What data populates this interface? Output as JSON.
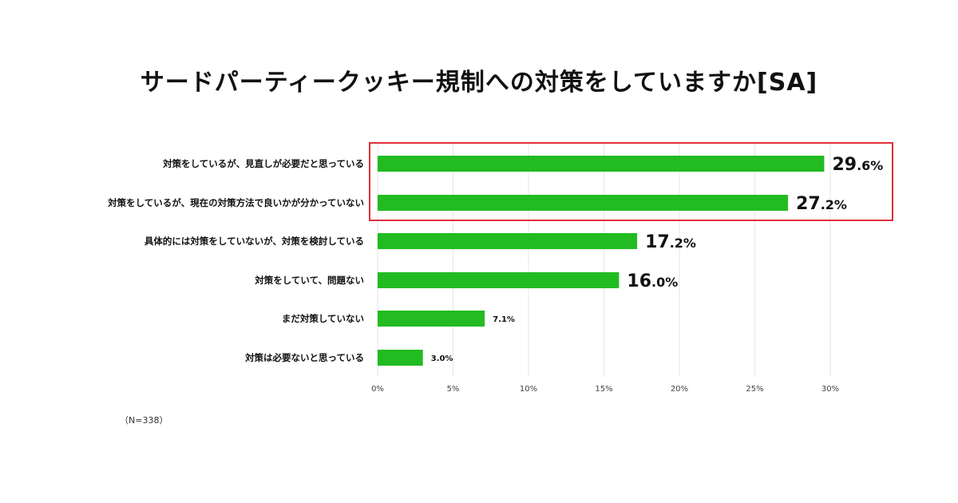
{
  "title": "サードパーティークッキー規制への対策をしていますか[SA]",
  "note": "（N=338）",
  "colors": {
    "bar": "#22bb22",
    "highlight": "#e0303a",
    "grid": "#e6e6e6",
    "text": "#111111"
  },
  "chart_data": {
    "type": "bar",
    "orientation": "horizontal",
    "title": "サードパーティークッキー規制への対策をしていますか[SA]",
    "categories": [
      "対策をしているが、見直しが必要だと思っている",
      "対策をしているが、現在の対策方法で良いかが分かっていない",
      "具体的には対策をしていないが、対策を検討している",
      "対策をしていて、問題ない",
      "まだ対策していない",
      "対策は必要ないと思っている"
    ],
    "values": [
      29.6,
      27.2,
      17.2,
      16.0,
      7.1,
      3.0
    ],
    "unit": "%",
    "xlim": [
      0,
      30
    ],
    "xticks": [
      "0%",
      "5%",
      "10%",
      "15%",
      "20%",
      "25%",
      "30%"
    ],
    "grid": true,
    "highlighted": [
      0,
      1
    ]
  }
}
